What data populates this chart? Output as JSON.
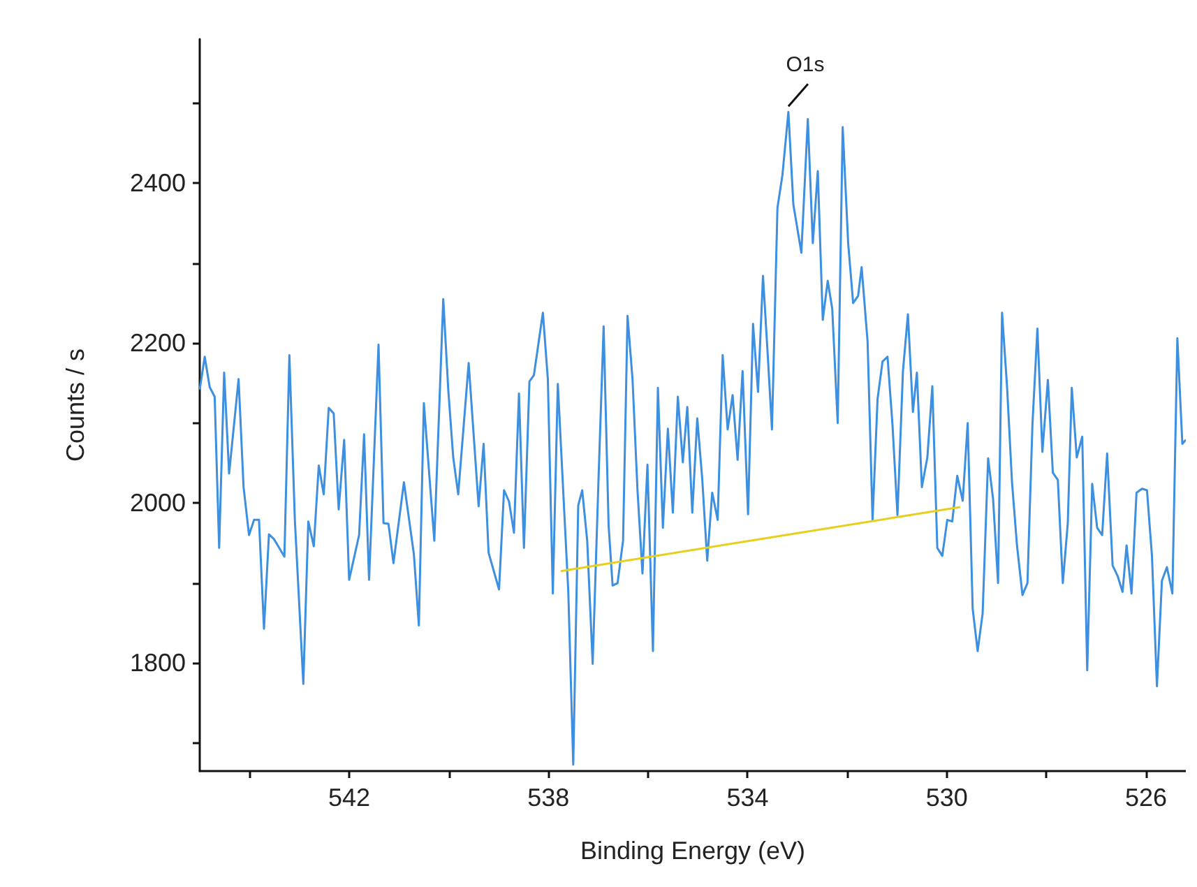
{
  "chart_data": {
    "type": "line",
    "xlabel": "Binding Energy (eV)",
    "ylabel": "Counts / s",
    "xlim": [
      545,
      525.2
    ],
    "ylim": [
      1665,
      2580
    ],
    "xticks": [
      {
        "value": 544,
        "label": null
      },
      542,
      {
        "value": 540,
        "label": null
      },
      538,
      {
        "value": 536,
        "label": null
      },
      534,
      {
        "value": 532,
        "label": null
      },
      530,
      {
        "value": 528,
        "label": null
      },
      526
    ],
    "yticks": [
      {
        "value": 1700,
        "label": null
      },
      1800,
      {
        "value": 1900,
        "label": null
      },
      2000,
      {
        "value": 2100,
        "label": null
      },
      2200,
      {
        "value": 2300,
        "label": null
      },
      2400,
      {
        "value": 2500,
        "label": null
      }
    ],
    "annotations": [
      {
        "text": "O1s",
        "x": 533.18,
        "y": 2489
      }
    ],
    "series": [
      {
        "color": "#3d8fe0",
        "x": [
          545.0,
          544.9,
          544.8,
          544.7,
          544.61,
          544.51,
          544.41,
          544.22,
          544.12,
          544.01,
          543.91,
          543.81,
          543.71,
          543.61,
          543.51,
          543.3,
          543.2,
          543.09,
          542.92,
          542.82,
          542.71,
          542.61,
          542.51,
          542.41,
          542.31,
          542.21,
          542.1,
          542.0,
          541.8,
          541.7,
          541.6,
          541.41,
          541.31,
          541.21,
          541.11,
          540.9,
          540.7,
          540.6,
          540.5,
          540.29,
          540.11,
          540.01,
          539.91,
          539.81,
          539.6,
          539.4,
          539.3,
          539.2,
          539.1,
          538.99,
          538.89,
          538.79,
          538.69,
          538.59,
          538.49,
          538.38,
          538.29,
          538.11,
          538.01,
          537.91,
          537.81,
          537.6,
          537.5,
          537.4,
          537.32,
          537.22,
          537.11,
          536.99,
          536.89,
          536.79,
          536.71,
          536.61,
          536.5,
          536.41,
          536.31,
          536.21,
          536.11,
          536.01,
          535.9,
          535.8,
          535.7,
          535.6,
          535.5,
          535.4,
          535.3,
          535.21,
          535.11,
          535.01,
          534.91,
          534.81,
          534.71,
          534.6,
          534.5,
          534.4,
          534.3,
          534.2,
          534.1,
          533.99,
          533.89,
          533.79,
          533.69,
          533.59,
          533.51,
          533.4,
          533.3,
          533.18,
          533.08,
          532.92,
          532.79,
          532.69,
          532.59,
          532.49,
          532.39,
          532.3,
          532.19,
          532.09,
          531.98,
          531.88,
          531.78,
          531.71,
          531.59,
          531.49,
          531.39,
          531.29,
          531.19,
          531.09,
          530.99,
          530.88,
          530.78,
          530.68,
          530.6,
          530.5,
          530.39,
          530.29,
          530.19,
          530.09,
          529.99,
          529.89,
          529.79,
          529.68,
          529.58,
          529.48,
          529.38,
          529.28,
          529.17,
          529.07,
          528.97,
          528.89,
          528.79,
          528.69,
          528.59,
          528.48,
          528.38,
          528.28,
          528.18,
          528.08,
          527.97,
          527.87,
          527.77,
          527.67,
          527.57,
          527.49,
          527.39,
          527.28,
          527.18,
          527.08,
          526.98,
          526.88,
          526.78,
          526.67,
          526.57,
          526.47,
          526.39,
          526.29,
          526.19,
          526.08,
          525.98,
          525.88,
          525.78,
          525.68,
          525.58,
          525.47,
          525.37,
          525.27,
          525.2
        ],
        "values": [
          2142,
          2183,
          2145,
          2133,
          1944,
          2163,
          2037,
          2155,
          2020,
          1960,
          1979,
          1979,
          1843,
          1961,
          1955,
          1933,
          2185,
          1979,
          1774,
          1977,
          1946,
          2047,
          2011,
          2119,
          2112,
          1992,
          2079,
          1904,
          1960,
          2086,
          1904,
          2198,
          1975,
          1974,
          1925,
          2026,
          1936,
          1847,
          2125,
          1953,
          2255,
          2142,
          2057,
          2011,
          2175,
          1996,
          2074,
          1938,
          1916,
          1892,
          2016,
          2002,
          1963,
          2137,
          1944,
          2152,
          2160,
          2238,
          2155,
          1887,
          2149,
          1890,
          1673,
          1997,
          2016,
          1953,
          1799,
          2035,
          2221,
          1972,
          1897,
          1900,
          1953,
          2234,
          2155,
          2016,
          1912,
          2048,
          1815,
          2144,
          1969,
          2093,
          1988,
          2133,
          2051,
          2120,
          1988,
          2106,
          2030,
          1928,
          2013,
          1979,
          2185,
          2092,
          2135,
          2054,
          2165,
          1986,
          2224,
          2139,
          2284,
          2180,
          2092,
          2369,
          2410,
          2489,
          2373,
          2313,
          2480,
          2325,
          2415,
          2229,
          2278,
          2243,
          2100,
          2470,
          2325,
          2250,
          2259,
          2295,
          2202,
          1979,
          2130,
          2177,
          2183,
          2098,
          1985,
          2165,
          2236,
          2114,
          2163,
          2020,
          2057,
          2146,
          1944,
          1934,
          1979,
          1977,
          2034,
          2003,
          2100,
          1868,
          1815,
          1862,
          2056,
          2005,
          1900,
          2238,
          2146,
          2026,
          1947,
          1885,
          1900,
          2098,
          2218,
          2064,
          2154,
          2038,
          2029,
          1900,
          1975,
          2144,
          2057,
          2083,
          1791,
          2024,
          1969,
          1960,
          2062,
          1922,
          1909,
          1889,
          1947,
          1887,
          2013,
          2018,
          2016,
          1934,
          1771,
          1903,
          1920,
          1887,
          2206,
          2074,
          2079
        ]
      },
      {
        "type": "line",
        "color": "#e8cf1c",
        "x": [
          537.75,
          529.73
        ],
        "values": [
          1915,
          1995
        ]
      }
    ]
  }
}
